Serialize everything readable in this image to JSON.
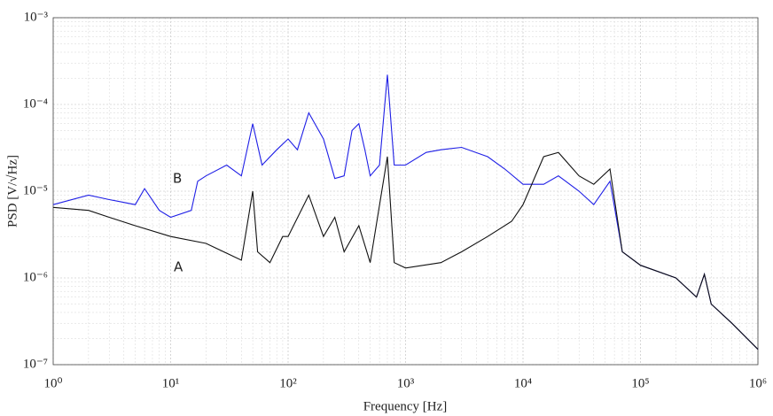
{
  "chart_data": {
    "type": "line",
    "xlabel": "Frequency [Hz]",
    "ylabel": "PSD [V/√Hz]",
    "xscale": "log",
    "yscale": "log",
    "grid": true,
    "xlim": [
      1,
      1000000
    ],
    "ylim": [
      1e-07,
      0.001
    ],
    "xticks": [
      {
        "value": 1,
        "label": "10⁰"
      },
      {
        "value": 10,
        "label": "10¹"
      },
      {
        "value": 100,
        "label": "10²"
      },
      {
        "value": 1000,
        "label": "10³"
      },
      {
        "value": 10000,
        "label": "10⁴"
      },
      {
        "value": 100000,
        "label": "10⁵"
      },
      {
        "value": 1000000,
        "label": "10⁶"
      }
    ],
    "yticks": [
      {
        "value": 1e-07,
        "label": "10⁻⁷"
      },
      {
        "value": 1e-06,
        "label": "10⁻⁶"
      },
      {
        "value": 1e-05,
        "label": "10⁻⁵"
      },
      {
        "value": 0.0001,
        "label": "10⁻⁴"
      },
      {
        "value": 0.001,
        "label": "10⁻³"
      }
    ],
    "series": [
      {
        "name": "B",
        "color": "#1f1fe6",
        "x": [
          1,
          2,
          3,
          5,
          6,
          8,
          10,
          15,
          17,
          20,
          30,
          40,
          50,
          60,
          80,
          100,
          120,
          150,
          200,
          250,
          300,
          350,
          400,
          450,
          500,
          600,
          700,
          800,
          1000,
          1500,
          2000,
          3000,
          5000,
          7000,
          10000,
          15000,
          20000,
          30000,
          40000,
          55000,
          70000,
          100000,
          200000,
          300000,
          350000,
          400000,
          600000,
          1000000
        ],
        "values": [
          7e-06,
          9e-06,
          8e-06,
          7e-06,
          1.07e-05,
          6e-06,
          5e-06,
          6e-06,
          1.3e-05,
          1.5e-05,
          2e-05,
          1.5e-05,
          6e-05,
          2e-05,
          3e-05,
          4e-05,
          3e-05,
          8e-05,
          4e-05,
          1.4e-05,
          1.5e-05,
          5e-05,
          6e-05,
          3e-05,
          1.5e-05,
          2e-05,
          0.00022,
          2e-05,
          2e-05,
          2.8e-05,
          3e-05,
          3.2e-05,
          2.5e-05,
          1.8e-05,
          1.2e-05,
          1.2e-05,
          1.5e-05,
          1e-05,
          7e-06,
          1.3e-05,
          2e-06,
          1.4e-06,
          1e-06,
          6e-07,
          1.1e-06,
          5e-07,
          3e-07,
          1.5e-07
        ]
      },
      {
        "name": "A",
        "color": "#111111",
        "x": [
          1,
          2,
          3,
          5,
          10,
          20,
          40,
          50,
          55,
          70,
          90,
          100,
          150,
          200,
          250,
          300,
          400,
          500,
          700,
          800,
          1000,
          2000,
          3000,
          5000,
          8000,
          10000,
          15000,
          20000,
          30000,
          40000,
          55000,
          70000,
          100000,
          200000,
          300000,
          350000,
          400000,
          600000,
          1000000
        ],
        "values": [
          6.5e-06,
          6e-06,
          5e-06,
          4e-06,
          3e-06,
          2.5e-06,
          1.6e-06,
          1e-05,
          2e-06,
          1.5e-06,
          3e-06,
          3e-06,
          9e-06,
          3e-06,
          5e-06,
          2e-06,
          4e-06,
          1.5e-06,
          2.5e-05,
          1.5e-06,
          1.3e-06,
          1.5e-06,
          2e-06,
          3e-06,
          4.5e-06,
          7e-06,
          2.5e-05,
          2.8e-05,
          1.5e-05,
          1.2e-05,
          1.8e-05,
          2e-06,
          1.4e-06,
          1e-06,
          6e-07,
          1.1e-06,
          5e-07,
          3e-07,
          1.5e-07
        ]
      }
    ]
  }
}
